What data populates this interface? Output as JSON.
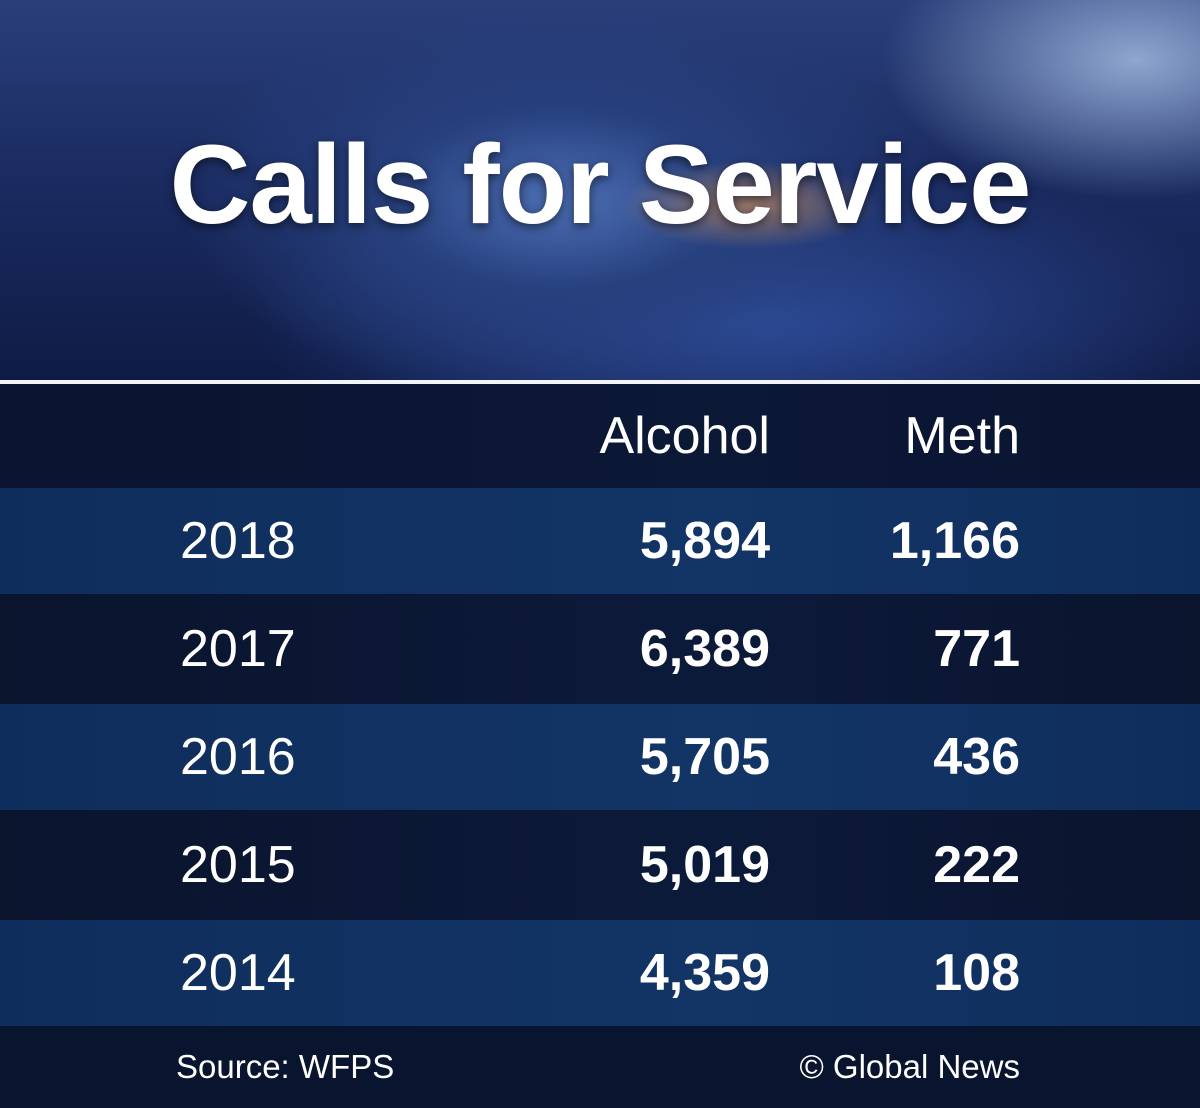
{
  "header": {
    "title": "Calls for Service"
  },
  "table": {
    "columns": [
      "Alcohol",
      "Meth"
    ],
    "rows": [
      [
        "2018",
        "5,894",
        "1,166"
      ],
      [
        "2017",
        "6,389",
        "771"
      ],
      [
        "2016",
        "5,705",
        "436"
      ],
      [
        "2015",
        "5,019",
        "222"
      ],
      [
        "2014",
        "4,359",
        "108"
      ]
    ]
  },
  "footer": {
    "source": "Source: WFPS",
    "credit": "© Global News"
  }
}
